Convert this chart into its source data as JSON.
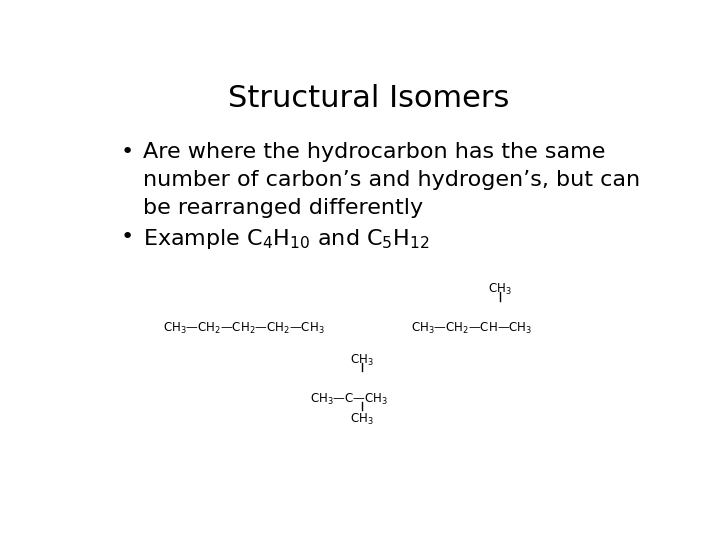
{
  "title": "Structural Isomers",
  "title_fontsize": 22,
  "title_font": "DejaVu Sans",
  "bullet1_line1": "Are where the hydrocarbon has the same",
  "bullet1_line2": "number of carbon’s and hydrogen’s, but can",
  "bullet1_line3": "be rearranged differently",
  "body_fontsize": 16,
  "body_font": "DejaVu Sans",
  "background_color": "#ffffff",
  "text_color": "#000000",
  "struct_fontsize": 8.5,
  "dash": "—"
}
